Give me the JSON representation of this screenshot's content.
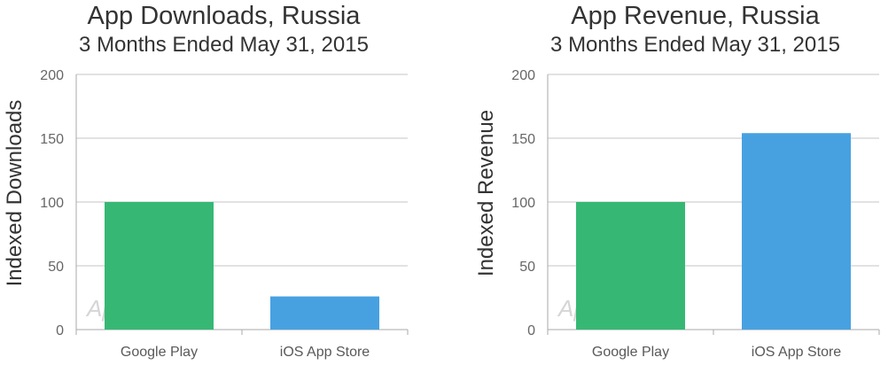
{
  "charts": [
    {
      "title": "App Downloads, Russia",
      "subtitle": "3 Months Ended May 31, 2015",
      "watermark": "App Annie"
    },
    {
      "title": "App Revenue, Russia",
      "subtitle": "3 Months Ended May 31, 2015",
      "watermark": "App Annie"
    }
  ],
  "chart_data": [
    {
      "type": "bar",
      "title": "App Downloads, Russia",
      "subtitle": "3 Months Ended May 31, 2015",
      "categories": [
        "Google Play",
        "iOS App Store"
      ],
      "values": [
        100,
        26
      ],
      "colors": [
        "#36b874",
        "#47a1e1"
      ],
      "xlabel": "",
      "ylabel": "Indexed Downloads",
      "ylim": [
        0,
        200
      ],
      "yticks": [
        0,
        50,
        100,
        150,
        200
      ],
      "grid": true,
      "legend": "none"
    },
    {
      "type": "bar",
      "title": "App Revenue, Russia",
      "subtitle": "3 Months Ended May 31, 2015",
      "categories": [
        "Google Play",
        "iOS App Store"
      ],
      "values": [
        100,
        154
      ],
      "colors": [
        "#36b874",
        "#47a1e1"
      ],
      "xlabel": "",
      "ylabel": "Indexed Revenue",
      "ylim": [
        0,
        200
      ],
      "yticks": [
        0,
        50,
        100,
        150,
        200
      ],
      "grid": true,
      "legend": "none"
    }
  ]
}
